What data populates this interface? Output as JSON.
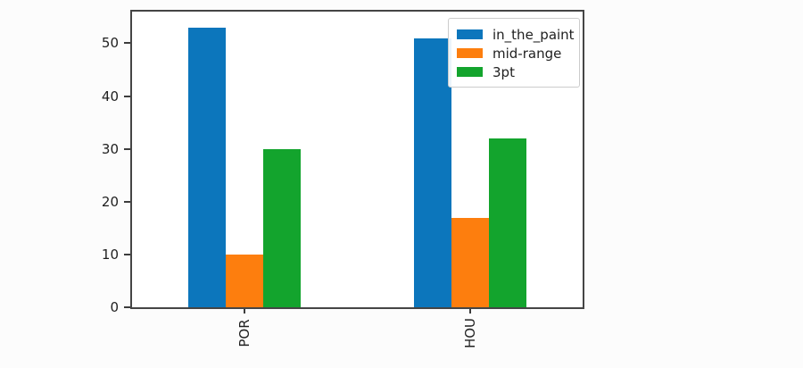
{
  "chart_data": {
    "type": "bar",
    "title": "",
    "xlabel": "",
    "ylabel": "",
    "categories": [
      "POR",
      "HOU"
    ],
    "series": [
      {
        "name": "in_the_paint",
        "color": "#0c76bc",
        "values": [
          53,
          51
        ]
      },
      {
        "name": "mid-range",
        "color": "#fd7e0e",
        "values": [
          10,
          17
        ]
      },
      {
        "name": "3pt",
        "color": "#13a42d",
        "values": [
          30,
          32
        ]
      }
    ],
    "yticks": [
      0,
      10,
      20,
      30,
      40,
      50
    ],
    "ylim": [
      0,
      56
    ],
    "x_tick_rotation": 90,
    "grid": false,
    "legend_position": "upper right",
    "colors": {
      "spine": "#454545",
      "tick_text": "#1f1f1f",
      "legend_border": "#cccccc",
      "plot_background": "#ffffff",
      "page_background": "#fcfcfc"
    }
  }
}
